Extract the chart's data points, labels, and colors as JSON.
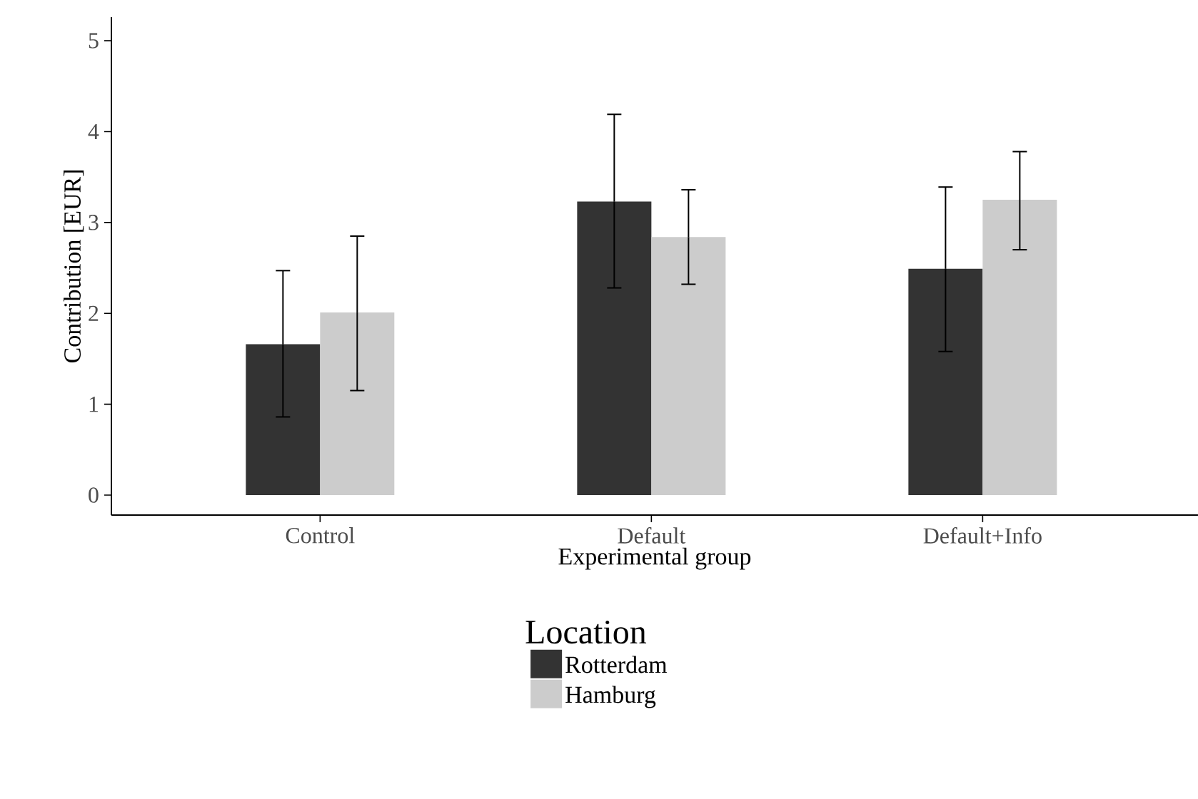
{
  "chart_data": {
    "type": "bar",
    "xlabel": "Experimental group",
    "ylabel": "Contribution [EUR]",
    "legend_title": "Location",
    "legend": "bottom",
    "categories": [
      "Control",
      "Default",
      "Default+Info"
    ],
    "ylim": [
      -0.22,
      5.26
    ],
    "yticks": [
      0,
      1,
      2,
      3,
      4,
      5
    ],
    "series": [
      {
        "name": "Rotterdam",
        "color": "#333333",
        "values": [
          1.66,
          3.23,
          2.49
        ],
        "errors": [
          [
            0.86,
            2.47
          ],
          [
            2.28,
            4.19
          ],
          [
            1.58,
            3.39
          ]
        ]
      },
      {
        "name": "Hamburg",
        "color": "#cccccc",
        "values": [
          2.01,
          2.84,
          3.25
        ],
        "errors": [
          [
            1.15,
            2.85
          ],
          [
            2.32,
            3.36
          ],
          [
            2.7,
            3.78
          ]
        ]
      }
    ]
  }
}
